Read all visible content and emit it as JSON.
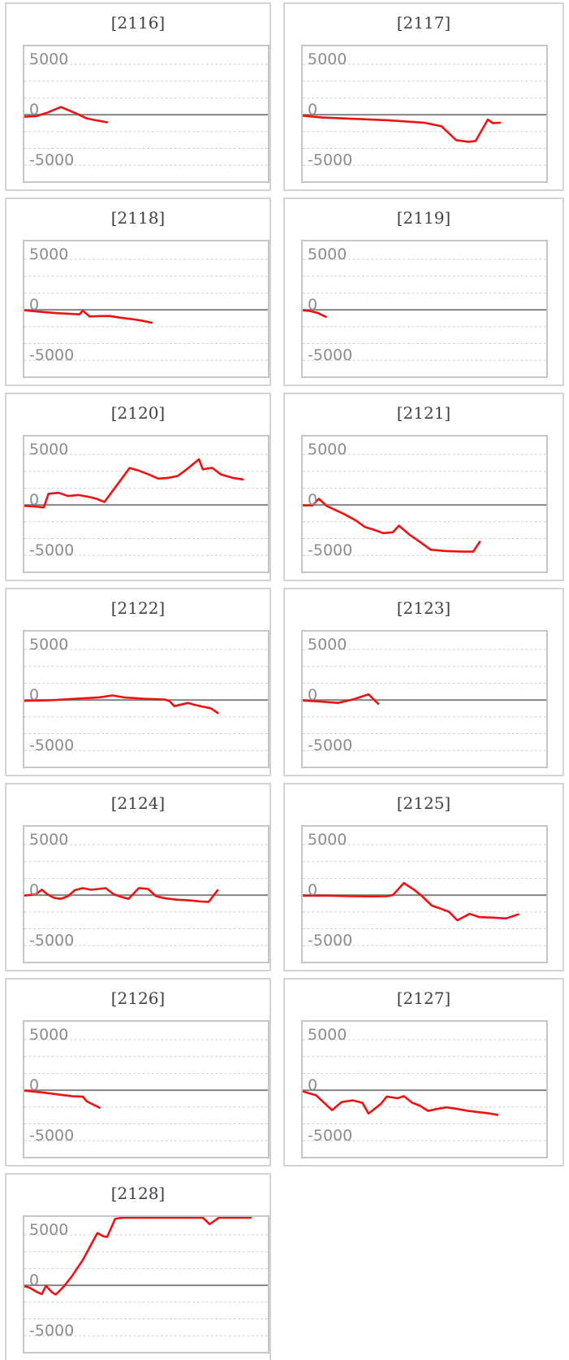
{
  "theme": {
    "background": "#ffffff",
    "line_color": "#ee1111",
    "zero_axis_color": "#838383",
    "gridline_color": "#cbcbcb",
    "axis_label_color": "#8c8c8c",
    "title_color": "#40404a",
    "panel_border_color": "#d4d4d4",
    "plot_border_color": "#c5c5c5"
  },
  "chart_data": {
    "type": "line",
    "layout": "13 small-multiple line charts in a 2-column grid, last row has a single chart",
    "legend": "none",
    "grid": "7 evenly spaced dotted horizontal gridlines; middle (0) line solid",
    "x_axis": {
      "tick_labels": [],
      "range": [
        0,
        1
      ],
      "note": "x given as fraction of plot width"
    },
    "y_axis": {
      "tick_labels": [
        "5000",
        "0",
        "-5000"
      ],
      "tick_values": [
        5000,
        0,
        -5000
      ],
      "ylim": [
        -6750,
        6770
      ]
    },
    "charts": [
      {
        "title": "[2116]",
        "points": [
          [
            0,
            -200
          ],
          [
            0.047,
            -150
          ],
          [
            0.094,
            200
          ],
          [
            0.15,
            760
          ],
          [
            0.216,
            100
          ],
          [
            0.254,
            -350
          ],
          [
            0.291,
            -550
          ],
          [
            0.34,
            -750
          ]
        ]
      },
      {
        "title": "[2117]",
        "points": [
          [
            0,
            -100
          ],
          [
            0.08,
            -280
          ],
          [
            0.2,
            -400
          ],
          [
            0.35,
            -550
          ],
          [
            0.5,
            -800
          ],
          [
            0.57,
            -1150
          ],
          [
            0.63,
            -2520
          ],
          [
            0.68,
            -2680
          ],
          [
            0.71,
            -2600
          ],
          [
            0.76,
            -480
          ],
          [
            0.78,
            -830
          ],
          [
            0.81,
            -800
          ]
        ]
      },
      {
        "title": "[2118]",
        "points": [
          [
            0,
            -50
          ],
          [
            0.066,
            -200
          ],
          [
            0.132,
            -330
          ],
          [
            0.188,
            -400
          ],
          [
            0.226,
            -450
          ],
          [
            0.24,
            -100
          ],
          [
            0.268,
            -660
          ],
          [
            0.31,
            -620
          ],
          [
            0.348,
            -610
          ],
          [
            0.395,
            -780
          ],
          [
            0.451,
            -950
          ],
          [
            0.489,
            -1100
          ],
          [
            0.523,
            -1280
          ]
        ]
      },
      {
        "title": "[2119]",
        "points": [
          [
            0,
            -50
          ],
          [
            0.03,
            -120
          ],
          [
            0.06,
            -300
          ],
          [
            0.095,
            -700
          ]
        ]
      },
      {
        "title": "[2120]",
        "points": [
          [
            0,
            -100
          ],
          [
            0.042,
            -150
          ],
          [
            0.08,
            -250
          ],
          [
            0.099,
            1100
          ],
          [
            0.141,
            1200
          ],
          [
            0.179,
            880
          ],
          [
            0.221,
            980
          ],
          [
            0.259,
            820
          ],
          [
            0.296,
            610
          ],
          [
            0.329,
            290
          ],
          [
            0.432,
            3650
          ],
          [
            0.47,
            3400
          ],
          [
            0.512,
            3000
          ],
          [
            0.55,
            2600
          ],
          [
            0.592,
            2680
          ],
          [
            0.63,
            2870
          ],
          [
            0.667,
            3530
          ],
          [
            0.717,
            4520
          ],
          [
            0.733,
            3530
          ],
          [
            0.771,
            3670
          ],
          [
            0.808,
            3000
          ],
          [
            0.855,
            2680
          ],
          [
            0.898,
            2520
          ]
        ]
      },
      {
        "title": "[2121]",
        "points": [
          [
            0,
            -50
          ],
          [
            0.04,
            -50
          ],
          [
            0.066,
            600
          ],
          [
            0.1,
            -130
          ],
          [
            0.165,
            -850
          ],
          [
            0.215,
            -1500
          ],
          [
            0.255,
            -2180
          ],
          [
            0.29,
            -2450
          ],
          [
            0.33,
            -2790
          ],
          [
            0.37,
            -2710
          ],
          [
            0.395,
            -2050
          ],
          [
            0.44,
            -2980
          ],
          [
            0.48,
            -3640
          ],
          [
            0.525,
            -4440
          ],
          [
            0.59,
            -4570
          ],
          [
            0.66,
            -4630
          ],
          [
            0.7,
            -4630
          ],
          [
            0.727,
            -3650
          ]
        ]
      },
      {
        "title": "[2122]",
        "points": [
          [
            0,
            -80
          ],
          [
            0.103,
            -30
          ],
          [
            0.212,
            130
          ],
          [
            0.301,
            240
          ],
          [
            0.362,
            450
          ],
          [
            0.414,
            240
          ],
          [
            0.489,
            130
          ],
          [
            0.578,
            50
          ],
          [
            0.597,
            -130
          ],
          [
            0.616,
            -610
          ],
          [
            0.672,
            -290
          ],
          [
            0.7,
            -480
          ],
          [
            0.733,
            -660
          ],
          [
            0.766,
            -820
          ],
          [
            0.794,
            -1280
          ]
        ]
      },
      {
        "title": "[2123]",
        "points": [
          [
            0,
            -50
          ],
          [
            0.07,
            -150
          ],
          [
            0.145,
            -290
          ],
          [
            0.21,
            80
          ],
          [
            0.27,
            560
          ],
          [
            0.31,
            -370
          ]
        ]
      },
      {
        "title": "[2124]",
        "points": [
          [
            0,
            -50
          ],
          [
            0.047,
            80
          ],
          [
            0.072,
            530
          ],
          [
            0.094,
            80
          ],
          [
            0.122,
            -270
          ],
          [
            0.15,
            -370
          ],
          [
            0.179,
            -110
          ],
          [
            0.207,
            480
          ],
          [
            0.24,
            690
          ],
          [
            0.273,
            530
          ],
          [
            0.306,
            610
          ],
          [
            0.334,
            690
          ],
          [
            0.367,
            80
          ],
          [
            0.4,
            -190
          ],
          [
            0.428,
            -370
          ],
          [
            0.47,
            690
          ],
          [
            0.508,
            610
          ],
          [
            0.541,
            -110
          ],
          [
            0.578,
            -320
          ],
          [
            0.625,
            -450
          ],
          [
            0.682,
            -530
          ],
          [
            0.724,
            -640
          ],
          [
            0.757,
            -670
          ],
          [
            0.794,
            480
          ]
        ]
      },
      {
        "title": "[2125]",
        "points": [
          [
            0,
            -50
          ],
          [
            0.095,
            -50
          ],
          [
            0.205,
            -110
          ],
          [
            0.29,
            -130
          ],
          [
            0.345,
            -110
          ],
          [
            0.37,
            0
          ],
          [
            0.415,
            1200
          ],
          [
            0.46,
            480
          ],
          [
            0.49,
            -110
          ],
          [
            0.53,
            -1040
          ],
          [
            0.57,
            -1380
          ],
          [
            0.6,
            -1650
          ],
          [
            0.635,
            -2500
          ],
          [
            0.685,
            -1860
          ],
          [
            0.725,
            -2180
          ],
          [
            0.78,
            -2230
          ],
          [
            0.835,
            -2310
          ],
          [
            0.885,
            -1910
          ]
        ]
      },
      {
        "title": "[2126]",
        "points": [
          [
            0,
            -50
          ],
          [
            0.066,
            -200
          ],
          [
            0.132,
            -400
          ],
          [
            0.197,
            -600
          ],
          [
            0.24,
            -640
          ],
          [
            0.257,
            -1120
          ],
          [
            0.291,
            -1520
          ],
          [
            0.309,
            -1730
          ]
        ]
      },
      {
        "title": "[2127]",
        "points": [
          [
            0,
            -110
          ],
          [
            0.055,
            -505
          ],
          [
            0.12,
            -1970
          ],
          [
            0.16,
            -1170
          ],
          [
            0.205,
            -1010
          ],
          [
            0.245,
            -1250
          ],
          [
            0.27,
            -2310
          ],
          [
            0.32,
            -1380
          ],
          [
            0.345,
            -640
          ],
          [
            0.39,
            -800
          ],
          [
            0.415,
            -585
          ],
          [
            0.45,
            -1250
          ],
          [
            0.48,
            -1520
          ],
          [
            0.515,
            -2050
          ],
          [
            0.55,
            -1860
          ],
          [
            0.59,
            -1700
          ],
          [
            0.635,
            -1860
          ],
          [
            0.68,
            -2050
          ],
          [
            0.725,
            -2180
          ],
          [
            0.77,
            -2310
          ],
          [
            0.8,
            -2450
          ]
        ]
      },
      {
        "title": "[2128]",
        "points": [
          [
            0,
            -80
          ],
          [
            0.023,
            -260
          ],
          [
            0.051,
            -660
          ],
          [
            0.072,
            -870
          ],
          [
            0.089,
            -50
          ],
          [
            0.112,
            -660
          ],
          [
            0.129,
            -920
          ],
          [
            0.162,
            -130
          ],
          [
            0.196,
            920
          ],
          [
            0.24,
            2500
          ],
          [
            0.3,
            5180
          ],
          [
            0.323,
            4870
          ],
          [
            0.34,
            4790
          ],
          [
            0.373,
            6580
          ],
          [
            0.404,
            6700
          ],
          [
            0.733,
            6700
          ],
          [
            0.761,
            6050
          ],
          [
            0.799,
            6700
          ],
          [
            0.93,
            6700
          ]
        ]
      }
    ]
  }
}
